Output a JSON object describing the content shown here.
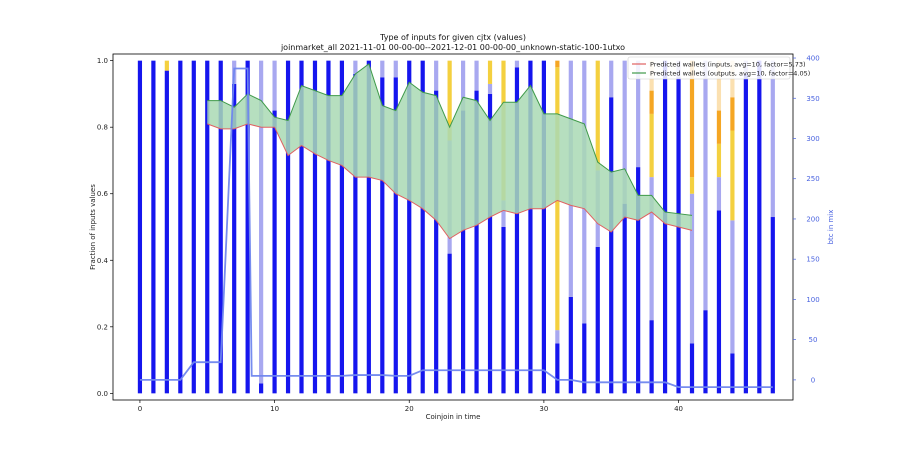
{
  "chart_data": {
    "type": "bar",
    "title": "Type of inputs for given cjtx (values)",
    "subtitle": "joinmarket_all 2021-11-01 00-00-00--2021-12-01 00-00-00_unknown-static-100-1utxo",
    "xlabel": "Coinjoin in time",
    "ylabel": "Fraction of inputs values",
    "y2label": "btc in mix",
    "xlim": [
      -2,
      48.5
    ],
    "ylim": [
      -0.02,
      1.02
    ],
    "y2lim": [
      -25,
      405
    ],
    "x_ticks": [
      0,
      10,
      20,
      30,
      40
    ],
    "y_ticks": [
      0.0,
      0.2,
      0.4,
      0.6,
      0.8,
      1.0
    ],
    "y2_ticks": [
      0,
      50,
      100,
      150,
      200,
      250,
      300,
      350,
      400
    ],
    "grid": false,
    "legend_position": "top-right",
    "colors": {
      "fresh": "#1515ee",
      "remixed": "#a8a8f0",
      "gold": "#f4d03f",
      "orange": "#f5a623",
      "light_orange": "#fbe0b0",
      "pred_inputs": "#e06060",
      "pred_outputs": "#3f9a4a",
      "band": "#a9d9b4",
      "btc_line": "#6f86ee"
    },
    "x": [
      0,
      1,
      2,
      3,
      4,
      5,
      6,
      7,
      8,
      9,
      10,
      11,
      12,
      13,
      14,
      15,
      16,
      17,
      18,
      19,
      20,
      21,
      22,
      23,
      24,
      25,
      26,
      27,
      28,
      29,
      30,
      31,
      32,
      33,
      34,
      35,
      36,
      37,
      38,
      39,
      40,
      41,
      42,
      43,
      44,
      45,
      46,
      47
    ],
    "stacks": [
      [
        1.0,
        0,
        0,
        0,
        0
      ],
      [
        1.0,
        0,
        0,
        0,
        0
      ],
      [
        0.97,
        0,
        0.03,
        0,
        0
      ],
      [
        1.0,
        0,
        0,
        0,
        0
      ],
      [
        1.0,
        0,
        0,
        0,
        0
      ],
      [
        1.0,
        0,
        0,
        0,
        0
      ],
      [
        1.0,
        0,
        0,
        0,
        0
      ],
      [
        0.93,
        0.07,
        0,
        0,
        0
      ],
      [
        1.0,
        0,
        0,
        0,
        0
      ],
      [
        0.03,
        0.97,
        0,
        0,
        0
      ],
      [
        0.85,
        0.15,
        0,
        0,
        0
      ],
      [
        1.0,
        0,
        0,
        0,
        0
      ],
      [
        1.0,
        0,
        0,
        0,
        0
      ],
      [
        1.0,
        0,
        0,
        0,
        0
      ],
      [
        1.0,
        0,
        0,
        0,
        0
      ],
      [
        1.0,
        0,
        0,
        0,
        0
      ],
      [
        0.96,
        0.04,
        0,
        0,
        0
      ],
      [
        1.0,
        0,
        0,
        0,
        0
      ],
      [
        0.95,
        0.05,
        0,
        0,
        0
      ],
      [
        0.95,
        0.05,
        0,
        0,
        0
      ],
      [
        1.0,
        0,
        0,
        0,
        0
      ],
      [
        1.0,
        0,
        0,
        0,
        0
      ],
      [
        0.91,
        0.09,
        0,
        0,
        0
      ],
      [
        0.42,
        0.34,
        0.24,
        0,
        0
      ],
      [
        0.85,
        0.15,
        0,
        0,
        0
      ],
      [
        0.91,
        0.09,
        0,
        0,
        0
      ],
      [
        0.9,
        0.03,
        0.07,
        0,
        0
      ],
      [
        0.5,
        0.08,
        0.42,
        0,
        0
      ],
      [
        0.98,
        0.02,
        0,
        0,
        0
      ],
      [
        1.0,
        0,
        0,
        0,
        0
      ],
      [
        1.0,
        0,
        0,
        0,
        0
      ],
      [
        0.15,
        0.04,
        0.79,
        0.02,
        0
      ],
      [
        0.29,
        0.71,
        0,
        0,
        0
      ],
      [
        0.21,
        0.79,
        0,
        0,
        0
      ],
      [
        0.44,
        0.23,
        0.33,
        0,
        0
      ],
      [
        0.89,
        0.11,
        0,
        0,
        0
      ],
      [
        0.57,
        0.43,
        0,
        0,
        0
      ],
      [
        0.68,
        0.32,
        0,
        0,
        0
      ],
      [
        0.22,
        0.43,
        0.19,
        0.07,
        0.09
      ],
      [
        1.0,
        0,
        0,
        0,
        0
      ],
      [
        0.95,
        0.05,
        0,
        0,
        0
      ],
      [
        0.15,
        0.45,
        0.05,
        0.35,
        0
      ],
      [
        0.25,
        0.75,
        0,
        0,
        0
      ],
      [
        0.55,
        0.1,
        0.1,
        0.1,
        0.15
      ],
      [
        0.12,
        0.4,
        0.27,
        0.1,
        0.11
      ],
      [
        0.96,
        0.04,
        0,
        0,
        0
      ],
      [
        1.0,
        0,
        0,
        0,
        0
      ],
      [
        0.53,
        0.47,
        0,
        0,
        0
      ]
    ],
    "series": [
      {
        "name": "Predicted wallets (inputs, avg=10, factor=5.73)",
        "x": [
          5,
          6,
          7,
          8,
          9,
          10,
          11,
          12,
          13,
          14,
          15,
          16,
          17,
          18,
          19,
          20,
          21,
          22,
          23,
          24,
          25,
          26,
          27,
          28,
          29,
          30,
          31,
          32,
          33,
          34,
          35,
          36,
          37,
          38,
          39,
          40,
          41
        ],
        "values": [
          0.81,
          0.795,
          0.795,
          0.81,
          0.8,
          0.8,
          0.715,
          0.745,
          0.72,
          0.7,
          0.685,
          0.65,
          0.65,
          0.64,
          0.6,
          0.58,
          0.555,
          0.52,
          0.465,
          0.49,
          0.505,
          0.53,
          0.55,
          0.54,
          0.555,
          0.555,
          0.58,
          0.565,
          0.555,
          0.51,
          0.485,
          0.53,
          0.52,
          0.545,
          0.51,
          0.5,
          0.49
        ]
      },
      {
        "name": "Predicted wallets (outputs, avg=10, factor=4.05)",
        "x": [
          5,
          6,
          7,
          8,
          9,
          10,
          11,
          12,
          13,
          14,
          15,
          16,
          17,
          18,
          19,
          20,
          21,
          22,
          23,
          24,
          25,
          26,
          27,
          28,
          29,
          30,
          31,
          32,
          33,
          34,
          35,
          36,
          37,
          38,
          39,
          40,
          41
        ],
        "values": [
          0.88,
          0.88,
          0.86,
          0.9,
          0.88,
          0.83,
          0.82,
          0.925,
          0.91,
          0.895,
          0.895,
          0.96,
          0.99,
          0.865,
          0.85,
          0.935,
          0.905,
          0.895,
          0.8,
          0.89,
          0.88,
          0.82,
          0.875,
          0.875,
          0.925,
          0.84,
          0.84,
          0.825,
          0.81,
          0.695,
          0.665,
          0.675,
          0.595,
          0.595,
          0.545,
          0.54,
          0.535
        ]
      },
      {
        "name": "btc in mix",
        "axis": "right",
        "x": [
          0,
          1,
          2,
          3,
          4,
          5,
          6,
          7,
          7.6,
          8,
          8.3,
          9,
          10,
          11,
          12,
          13,
          14,
          15,
          16,
          17,
          18,
          19,
          20,
          21,
          22,
          23,
          24,
          25,
          26,
          27,
          28,
          29,
          30,
          31,
          32,
          33,
          34,
          35,
          36,
          37,
          38,
          39,
          40,
          41,
          42,
          43,
          44,
          45,
          46,
          47
        ],
        "values": [
          0,
          0,
          0,
          0,
          22,
          22,
          22,
          387,
          387,
          387,
          5,
          5,
          5,
          5,
          5,
          5,
          5,
          5,
          6,
          6,
          6,
          5,
          5,
          12,
          12,
          12,
          12,
          12,
          12,
          12,
          12,
          12,
          12,
          0,
          0,
          -3,
          -3,
          -3,
          -3,
          -3,
          -3,
          -3,
          -9,
          -9,
          -9,
          -9,
          -9,
          -9,
          -9,
          -9
        ]
      }
    ]
  }
}
